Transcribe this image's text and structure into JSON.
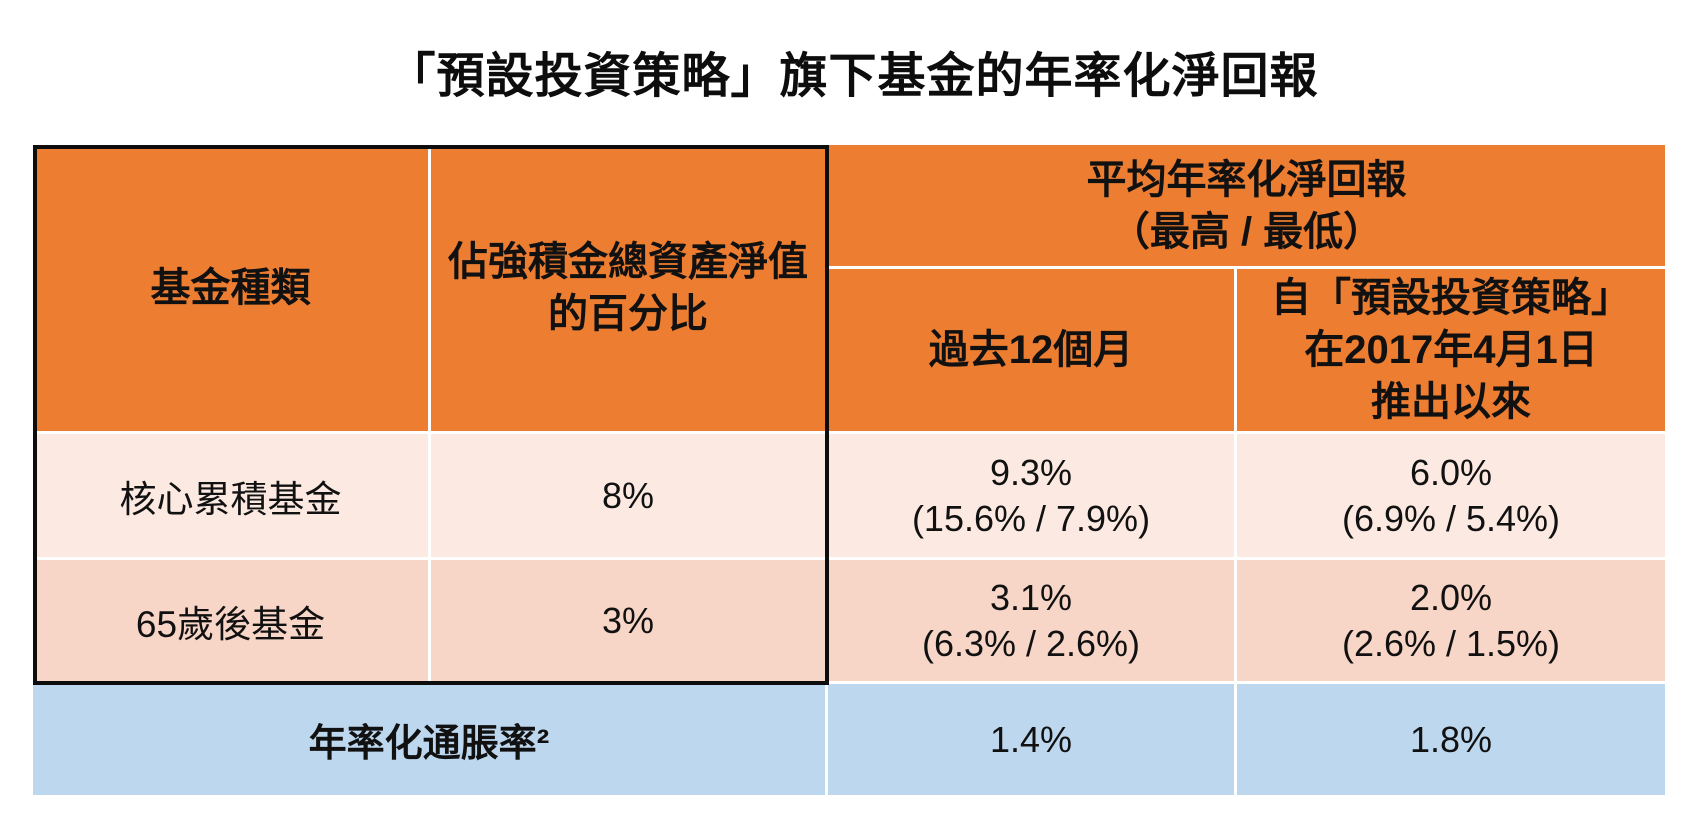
{
  "title": "「預設投資策略」旗下基金的年率化淨回報",
  "colors": {
    "header_orange": "#ED7D31",
    "row1_pink": "#FCEAE2",
    "row2_pink": "#F7D5C7",
    "inflation_blue": "#BDD7EE",
    "border_black": "#0D0D0D",
    "gridline_white": "#FFFFFF"
  },
  "table": {
    "headers": {
      "fund_type": "基金種類",
      "nav_pct": "佔強積金總資產淨值的百分比",
      "avg_return_line1": "平均年率化淨回報",
      "avg_return_line2": "（最高 / 最低）",
      "past_12m": "過去12個月",
      "since_launch_line1": "自「預設投資策略」",
      "since_launch_line2": "在2017年4月1日",
      "since_launch_line3": "推出以來"
    },
    "rows": [
      {
        "fund": "核心累積基金",
        "nav_pct": "8%",
        "past12m_value": "9.3%",
        "past12m_range": "(15.6% / 7.9%)",
        "since_value": "6.0%",
        "since_range": "(6.9% / 5.4%)"
      },
      {
        "fund": "65歲後基金",
        "nav_pct": "3%",
        "past12m_value": "3.1%",
        "past12m_range": "(6.3% / 2.6%)",
        "since_value": "2.0%",
        "since_range": "(2.6% / 1.5%)"
      }
    ],
    "inflation": {
      "label": "年率化通脹率²",
      "past12m": "1.4%",
      "since": "1.8%"
    }
  },
  "chart_data": {
    "type": "table",
    "title": "「預設投資策略」旗下基金的年率化淨回報",
    "columns": [
      "基金種類",
      "佔強積金總資產淨值的百分比",
      "平均年率化淨回報（最高 / 最低）－過去12個月",
      "平均年率化淨回報（最高 / 最低）－自「預設投資策略」在2017年4月1日推出以來"
    ],
    "rows": [
      [
        "核心累積基金",
        "8%",
        "9.3% (15.6% / 7.9%)",
        "6.0% (6.9% / 5.4%)"
      ],
      [
        "65歲後基金",
        "3%",
        "3.1% (6.3% / 2.6%)",
        "2.0% (2.6% / 1.5%)"
      ],
      [
        "年率化通脹率²",
        "",
        "1.4%",
        "1.8%"
      ]
    ]
  }
}
